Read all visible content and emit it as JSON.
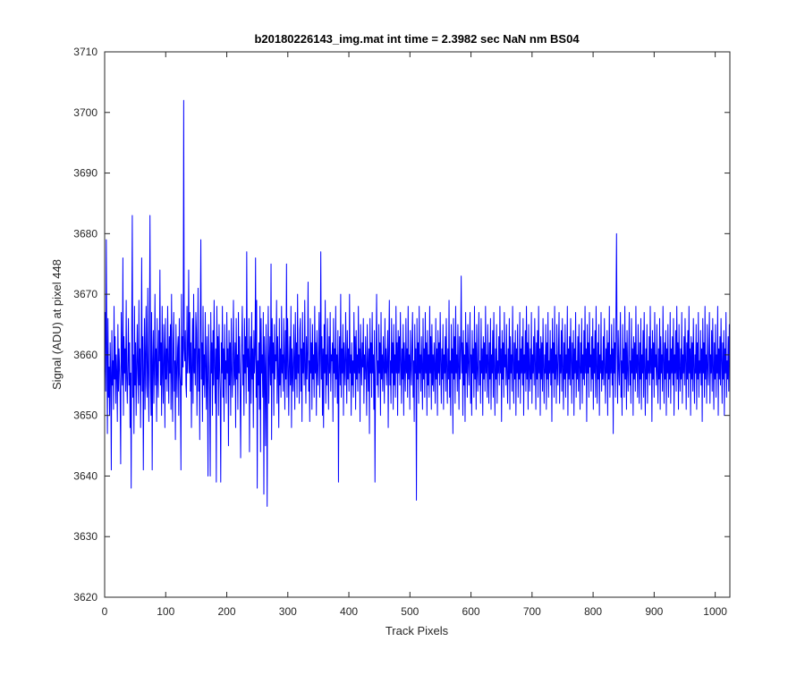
{
  "chart_data": {
    "type": "line",
    "title": "b20180226143_img.mat int time = 2.3982 sec  NaN nm BS04",
    "xlabel": "Track Pixels",
    "ylabel": "Signal (ADU) at pixel 448",
    "xlim": [
      0,
      1024
    ],
    "ylim": [
      3620,
      3710
    ],
    "xticks": [
      0,
      100,
      200,
      300,
      400,
      500,
      600,
      700,
      800,
      900,
      1000
    ],
    "yticks": [
      3620,
      3630,
      3640,
      3650,
      3660,
      3670,
      3680,
      3690,
      3700,
      3710
    ],
    "grid": false,
    "box": true,
    "series": [
      {
        "color": "#0000ff",
        "x_start": 1,
        "x_step": 1,
        "mean": 3657.5,
        "approx_std": 7.5,
        "values": [
          3656,
          3667,
          3654,
          3679,
          3661,
          3647,
          3666,
          3653,
          3658,
          3650,
          3662,
          3657,
          3641,
          3664,
          3655,
          3659,
          3651,
          3668,
          3656,
          3663,
          3652,
          3660,
          3657,
          3649,
          3665,
          3654,
          3661,
          3658,
          3653,
          3642,
          3667,
          3659,
          3655,
          3676,
          3650,
          3663,
          3657,
          3661,
          3654,
          3669,
          3656,
          3652,
          3659,
          3666,
          3655,
          3662,
          3648,
          3657,
          3638,
          3664,
          3683,
          3653,
          3660,
          3647,
          3668,
          3655,
          3662,
          3650,
          3658,
          3665,
          3657,
          3652,
          3669,
          3655,
          3661,
          3648,
          3659,
          3676,
          3654,
          3663,
          3641,
          3657,
          3666,
          3651,
          3660,
          3668,
          3655,
          3653,
          3671,
          3657,
          3649,
          3662,
          3683,
          3656,
          3650,
          3667,
          3641,
          3659,
          3664,
          3652,
          3658,
          3670,
          3655,
          3661,
          3649,
          3666,
          3657,
          3653,
          3664,
          3659,
          3674,
          3655,
          3662,
          3650,
          3668,
          3657,
          3652,
          3665,
          3660,
          3648,
          3666,
          3656,
          3661,
          3654,
          3668,
          3659,
          3652,
          3663,
          3657,
          3665,
          3651,
          3670,
          3656,
          3649,
          3662,
          3667,
          3654,
          3659,
          3646,
          3665,
          3658,
          3653,
          3661,
          3663,
          3650,
          3666,
          3657,
          3655,
          3641,
          3670,
          3655,
          3663,
          3658,
          3702,
          3661,
          3659,
          3664,
          3655,
          3653,
          3668,
          3657,
          3660,
          3674,
          3657,
          3667,
          3654,
          3662,
          3648,
          3659,
          3666,
          3652,
          3670,
          3657,
          3661,
          3655,
          3667,
          3664,
          3650,
          3659,
          3671,
          3654,
          3661,
          3646,
          3665,
          3679,
          3656,
          3662,
          3649,
          3668,
          3655,
          3660,
          3653,
          3667,
          3658,
          3651,
          3663,
          3656,
          3640,
          3665,
          3660,
          3654,
          3640,
          3667,
          3657,
          3662,
          3650,
          3664,
          3655,
          3669,
          3658,
          3652,
          3661,
          3639,
          3668,
          3656,
          3663,
          3650,
          3665,
          3658,
          3654,
          3639,
          3662,
          3657,
          3668,
          3653,
          3661,
          3649,
          3665,
          3656,
          3659,
          3652,
          3667,
          3657,
          3661,
          3645,
          3664,
          3655,
          3662,
          3650,
          3666,
          3658,
          3653,
          3660,
          3669,
          3655,
          3657,
          3662,
          3648,
          3666,
          3656,
          3660,
          3651,
          3667,
          3657,
          3663,
          3654,
          3643,
          3658,
          3662,
          3668,
          3655,
          3660,
          3650,
          3666,
          3657,
          3663,
          3652,
          3677,
          3658,
          3661,
          3654,
          3666,
          3644,
          3659,
          3663,
          3652,
          3667,
          3656,
          3661,
          3648,
          3664,
          3657,
          3660,
          3676,
          3653,
          3669,
          3638,
          3659,
          3655,
          3662,
          3651,
          3668,
          3644,
          3666,
          3657,
          3660,
          3653,
          3667,
          3637,
          3663,
          3658,
          3645,
          3665,
          3655,
          3635,
          3661,
          3668,
          3652,
          3659,
          3663,
          3655,
          3675,
          3646,
          3666,
          3657,
          3662,
          3650,
          3665,
          3656,
          3660,
          3659,
          3669,
          3652,
          3663,
          3657,
          3648,
          3666,
          3655,
          3661,
          3653,
          3668,
          3657,
          3660,
          3654,
          3666,
          3659,
          3651,
          3664,
          3656,
          3675,
          3653,
          3666,
          3660,
          3650,
          3658,
          3663,
          3655,
          3668,
          3648,
          3661,
          3657,
          3654,
          3665,
          3659,
          3651,
          3667,
          3656,
          3662,
          3653,
          3670,
          3657,
          3660,
          3652,
          3664,
          3666,
          3654,
          3661,
          3649,
          3667,
          3657,
          3662,
          3655,
          3669,
          3658,
          3652,
          3663,
          3656,
          3660,
          3672,
          3654,
          3659,
          3649,
          3666,
          3657,
          3662,
          3651,
          3665,
          3656,
          3660,
          3653,
          3668,
          3657,
          3662,
          3650,
          3664,
          3658,
          3655,
          3661,
          3667,
          3653,
          3659,
          3677,
          3656,
          3663,
          3650,
          3661,
          3648,
          3665,
          3657,
          3669,
          3652,
          3660,
          3655,
          3666,
          3658,
          3651,
          3663,
          3657,
          3667,
          3654,
          3660,
          3659,
          3662,
          3649,
          3666,
          3657,
          3661,
          3653,
          3668,
          3656,
          3660,
          3652,
          3664,
          3639,
          3658,
          3663,
          3655,
          3670,
          3653,
          3661,
          3657,
          3665,
          3650,
          3662,
          3658,
          3655,
          3667,
          3659,
          3652,
          3664,
          3656,
          3661,
          3654,
          3670,
          3657,
          3660,
          3650,
          3662,
          3655,
          3659,
          3653,
          3667,
          3657,
          3663,
          3651,
          3664,
          3656,
          3660,
          3654,
          3668,
          3657,
          3661,
          3649,
          3665,
          3659,
          3655,
          3662,
          3658,
          3666,
          3652,
          3660,
          3656,
          3663,
          3657,
          3650,
          3665,
          3659,
          3654,
          3661,
          3647,
          3666,
          3657,
          3662,
          3653,
          3667,
          3657,
          3660,
          3651,
          3664,
          3639,
          3657,
          3661,
          3670,
          3655,
          3659,
          3653,
          3665,
          3657,
          3662,
          3650,
          3667,
          3656,
          3660,
          3654,
          3663,
          3658,
          3652,
          3666,
          3657,
          3661,
          3655,
          3659,
          3664,
          3648,
          3661,
          3669,
          3655,
          3659,
          3652,
          3666,
          3657,
          3662,
          3651,
          3665,
          3655,
          3660,
          3653,
          3668,
          3657,
          3662,
          3650,
          3664,
          3657,
          3663,
          3655,
          3667,
          3659,
          3652,
          3661,
          3656,
          3665,
          3650,
          3662,
          3658,
          3654,
          3666,
          3657,
          3661,
          3653,
          3668,
          3656,
          3660,
          3651,
          3664,
          3658,
          3655,
          3662,
          3667,
          3653,
          3659,
          3649,
          3665,
          3657,
          3661,
          3636,
          3666,
          3656,
          3662,
          3652,
          3668,
          3657,
          3660,
          3654,
          3663,
          3658,
          3651,
          3666,
          3656,
          3661,
          3653,
          3667,
          3657,
          3662,
          3650,
          3664,
          3655,
          3660,
          3653,
          3668,
          3657,
          3663,
          3651,
          3665,
          3655,
          3660,
          3654,
          3662,
          3658,
          3652,
          3666,
          3656,
          3661,
          3650,
          3664,
          3657,
          3662,
          3655,
          3667,
          3659,
          3652,
          3661,
          3656,
          3665,
          3651,
          3660,
          3657,
          3663,
          3654,
          3666,
          3658,
          3652,
          3661,
          3656,
          3669,
          3653,
          3659,
          3650,
          3665,
          3657,
          3661,
          3647,
          3666,
          3656,
          3663,
          3652,
          3668,
          3657,
          3660,
          3654,
          3665,
          3658,
          3651,
          3663,
          3656,
          3661,
          3673,
          3657,
          3662,
          3650,
          3664,
          3655,
          3660,
          3649,
          3667,
          3657,
          3662,
          3653,
          3665,
          3659,
          3655,
          3661,
          3667,
          3652,
          3660,
          3650,
          3664,
          3657,
          3661,
          3653,
          3668,
          3656,
          3662,
          3651,
          3665,
          3658,
          3654,
          3660,
          3667,
          3655,
          3659,
          3652,
          3666,
          3657,
          3661,
          3650,
          3663,
          3656,
          3662,
          3654,
          3668,
          3657,
          3660,
          3653,
          3665,
          3659,
          3652,
          3662,
          3656,
          3666,
          3651,
          3660,
          3657,
          3664,
          3653,
          3667,
          3658,
          3650,
          3661,
          3656,
          3665,
          3652,
          3659,
          3657,
          3663,
          3655,
          3668,
          3657,
          3661,
          3649,
          3664,
          3656,
          3662,
          3653,
          3667,
          3658,
          3660,
          3655,
          3665,
          3657,
          3652,
          3661,
          3656,
          3666,
          3651,
          3663,
          3657,
          3660,
          3654,
          3668,
          3659,
          3652,
          3662,
          3656,
          3664,
          3650,
          3661,
          3657,
          3665,
          3653,
          3659,
          3656,
          3667,
          3652,
          3661,
          3657,
          3663,
          3655,
          3666,
          3650,
          3660,
          3657,
          3664,
          3654,
          3668,
          3656,
          3662,
          3651,
          3665,
          3658,
          3654,
          3661,
          3656,
          3667,
          3652,
          3660,
          3657,
          3663,
          3655,
          3666,
          3659,
          3651,
          3662,
          3656,
          3664,
          3653,
          3668,
          3657,
          3661,
          3650,
          3663,
          3656,
          3662,
          3654,
          3666,
          3658,
          3652,
          3660,
          3657,
          3665,
          3651,
          3662,
          3656,
          3667,
          3653,
          3659,
          3657,
          3664,
          3655,
          3661,
          3649,
          3666,
          3657,
          3662,
          3653,
          3668,
          3656,
          3660,
          3652,
          3665,
          3658,
          3655,
          3661,
          3667,
          3652,
          3660,
          3657,
          3664,
          3654,
          3666,
          3658,
          3651,
          3662,
          3656,
          3665,
          3653,
          3660,
          3657,
          3668,
          3650,
          3661,
          3656,
          3663,
          3655,
          3666,
          3659,
          3652,
          3662,
          3656,
          3664,
          3650,
          3661,
          3657,
          3667,
          3653,
          3659,
          3656,
          3663,
          3654,
          3665,
          3658,
          3651,
          3662,
          3657,
          3666,
          3652,
          3660,
          3656,
          3664,
          3655,
          3668,
          3657,
          3661,
          3649,
          3665,
          3657,
          3662,
          3653,
          3667,
          3658,
          3660,
          3654,
          3663,
          3656,
          3666,
          3651,
          3661,
          3657,
          3664,
          3653,
          3668,
          3658,
          3652,
          3662,
          3656,
          3665,
          3650,
          3660,
          3657,
          3667,
          3654,
          3659,
          3656,
          3663,
          3655,
          3666,
          3658,
          3652,
          3661,
          3657,
          3664,
          3650,
          3662,
          3656,
          3668,
          3653,
          3660,
          3657,
          3665,
          3655,
          3661,
          3647,
          3666,
          3657,
          3662,
          3653,
          3667,
          3680,
          3660,
          3652,
          3664,
          3658,
          3655,
          3661,
          3667,
          3653,
          3659,
          3650,
          3665,
          3657,
          3661,
          3653,
          3668,
          3656,
          3662,
          3651,
          3664,
          3658,
          3654,
          3660,
          3667,
          3655,
          3659,
          3652,
          3666,
          3657,
          3661,
          3650,
          3663,
          3656,
          3662,
          3654,
          3668,
          3657,
          3660,
          3653,
          3665,
          3659,
          3652,
          3662,
          3656,
          3666,
          3651,
          3660,
          3657,
          3664,
          3653,
          3667,
          3658,
          3650,
          3661,
          3656,
          3665,
          3652,
          3659,
          3657,
          3663,
          3655,
          3668,
          3657,
          3661,
          3649,
          3664,
          3656,
          3662,
          3653,
          3667,
          3658,
          3660,
          3655,
          3665,
          3657,
          3652,
          3661,
          3656,
          3666,
          3651,
          3663,
          3657,
          3660,
          3654,
          3668,
          3659,
          3652,
          3662,
          3656,
          3664,
          3650,
          3661,
          3657,
          3665,
          3653,
          3659,
          3656,
          3667,
          3652,
          3661,
          3657,
          3663,
          3655,
          3666,
          3650,
          3660,
          3657,
          3664,
          3654,
          3668,
          3656,
          3662,
          3651,
          3665,
          3658,
          3654,
          3661,
          3656,
          3667,
          3652,
          3660,
          3657,
          3663,
          3655,
          3666,
          3659,
          3651,
          3662,
          3656,
          3664,
          3653,
          3668,
          3657,
          3661,
          3650,
          3663,
          3656,
          3662,
          3654,
          3666,
          3658,
          3652,
          3660,
          3657,
          3665,
          3651,
          3662,
          3656,
          3667,
          3653,
          3659,
          3657,
          3664,
          3655,
          3661,
          3649,
          3666,
          3657,
          3662,
          3653,
          3668,
          3656,
          3660,
          3652,
          3665,
          3658,
          3655,
          3661,
          3667,
          3652,
          3660,
          3657,
          3664,
          3654,
          3666,
          3658,
          3651,
          3662,
          3656,
          3665,
          3653,
          3660,
          3657,
          3668,
          3650,
          3661,
          3656,
          3663,
          3655,
          3666,
          3659,
          3652,
          3662,
          3656,
          3664,
          3650,
          3661,
          3657,
          3667,
          3653,
          3659,
          3656,
          3663,
          3654,
          3665,
          3658
        ]
      }
    ]
  }
}
